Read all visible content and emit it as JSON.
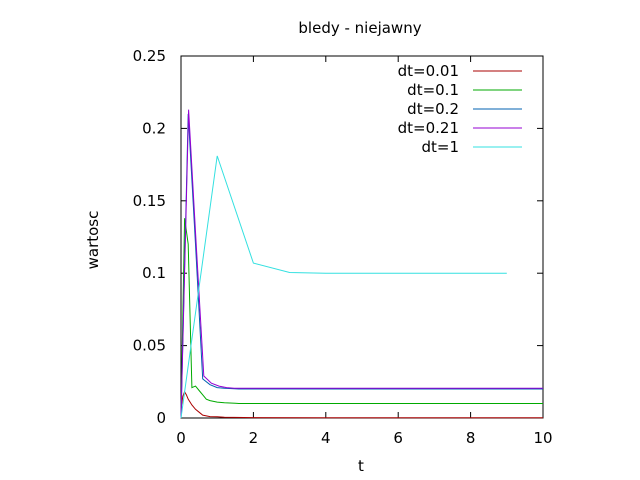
{
  "chart_data": {
    "type": "line",
    "title": "bledy - niejawny",
    "xlabel": "t",
    "ylabel": "wartosc",
    "xlim": [
      0,
      10
    ],
    "ylim": [
      0,
      0.25
    ],
    "xticks": [
      "0",
      "2",
      "4",
      "6",
      "8",
      "10"
    ],
    "yticks": [
      "0",
      "0.05",
      "0.1",
      "0.15",
      "0.2",
      "0.25"
    ],
    "xtick_values": [
      0,
      2,
      4,
      6,
      8,
      10
    ],
    "ytick_values": [
      0,
      0.05,
      0.1,
      0.15,
      0.2,
      0.25
    ],
    "grid": false,
    "legend_position": "top-right",
    "series": [
      {
        "name": "dt=0.01",
        "color": "#aa0000",
        "x": [
          0,
          0.01,
          0.05,
          0.1,
          0.15,
          0.2,
          0.3,
          0.4,
          0.5,
          0.6,
          0.8,
          1.0,
          1.2,
          2,
          4,
          6,
          8,
          10
        ],
        "y": [
          0,
          0.008,
          0.015,
          0.018,
          0.016,
          0.013,
          0.009,
          0.006,
          0.004,
          0.002,
          0.001,
          0.0008,
          0.0005,
          0.0003,
          0.0002,
          0.0002,
          0.0002,
          0.0002
        ]
      },
      {
        "name": "dt=0.1",
        "color": "#00aa00",
        "x": [
          0,
          0.1,
          0.2,
          0.3,
          0.4,
          0.5,
          0.6,
          0.7,
          0.8,
          1.0,
          1.2,
          1.5,
          1.6,
          2,
          4,
          6,
          8,
          10
        ],
        "y": [
          0,
          0.138,
          0.12,
          0.021,
          0.022,
          0.019,
          0.016,
          0.013,
          0.012,
          0.011,
          0.0105,
          0.0102,
          0.01,
          0.01,
          0.01,
          0.01,
          0.01,
          0.01
        ]
      },
      {
        "name": "dt=0.2",
        "color": "#0060b0",
        "x": [
          0,
          0.2,
          0.4,
          0.6,
          0.8,
          1.0,
          1.2,
          1.6,
          2,
          4,
          6,
          8,
          10
        ],
        "y": [
          0,
          0.21,
          0.12,
          0.027,
          0.023,
          0.021,
          0.0205,
          0.02,
          0.02,
          0.02,
          0.02,
          0.02,
          0.02
        ]
      },
      {
        "name": "dt=0.21",
        "color": "#9400d3",
        "x": [
          0,
          0.21,
          0.42,
          0.63,
          0.84,
          1.05,
          1.26,
          1.47,
          2,
          4,
          6,
          8,
          10
        ],
        "y": [
          0,
          0.213,
          0.12,
          0.029,
          0.024,
          0.022,
          0.021,
          0.0205,
          0.0205,
          0.0205,
          0.0205,
          0.0205,
          0.0205
        ]
      },
      {
        "name": "dt=1",
        "color": "#33e0e0",
        "x": [
          0,
          1,
          2,
          3,
          4,
          5,
          6,
          7,
          8,
          9
        ],
        "y": [
          0,
          0.181,
          0.107,
          0.1005,
          0.1,
          0.1,
          0.1,
          0.1,
          0.1,
          0.1
        ]
      }
    ]
  }
}
